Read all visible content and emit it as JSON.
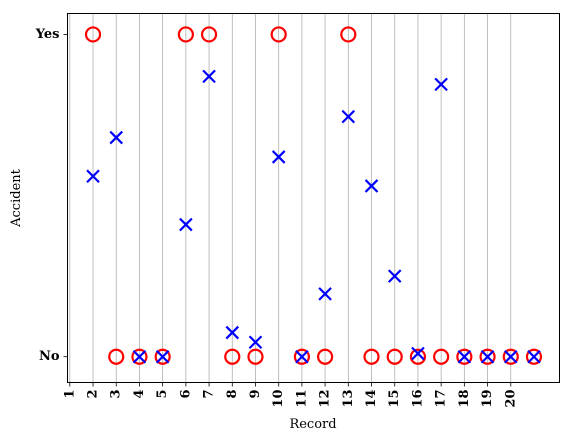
{
  "chart_data": {
    "type": "scatter",
    "title": "",
    "xlabel": "Record",
    "ylabel": "Accident",
    "x_ticks": [
      "1",
      "2",
      "3",
      "4",
      "5",
      "6",
      "7",
      "8",
      "9",
      "10",
      "11",
      "12",
      "13",
      "14",
      "15",
      "16",
      "17",
      "18",
      "19",
      "20"
    ],
    "y_ticks": [
      {
        "label": "No",
        "value": 0
      },
      {
        "label": "Yes",
        "value": 1
      }
    ],
    "xlim": [
      0.9,
      22.1
    ],
    "ylim": [
      -0.08,
      1.065
    ],
    "grid": "vertical",
    "colors": {
      "actual": "#ff0000",
      "predicted": "#0000ff"
    },
    "series": [
      {
        "marker": "circle",
        "x": [
          2,
          3,
          4,
          5,
          6,
          7,
          8,
          9,
          10,
          11,
          12,
          13,
          14,
          15,
          16,
          17,
          18,
          19,
          20,
          21
        ],
        "values": [
          1,
          0,
          0,
          0,
          1,
          1,
          0,
          0,
          1,
          0,
          0,
          1,
          0,
          0,
          0,
          0,
          0,
          0,
          0,
          0
        ]
      },
      {
        "marker": "x",
        "x": [
          2,
          3,
          4,
          5,
          6,
          7,
          8,
          9,
          10,
          11,
          12,
          13,
          14,
          15,
          16,
          17,
          18,
          19,
          20,
          21
        ],
        "values": [
          0.56,
          0.68,
          0.0,
          0.0,
          0.41,
          0.87,
          0.075,
          0.045,
          0.62,
          0.0,
          0.195,
          0.745,
          0.53,
          0.25,
          0.01,
          0.845,
          0.0,
          0.0,
          0.0,
          0.0
        ]
      }
    ]
  }
}
